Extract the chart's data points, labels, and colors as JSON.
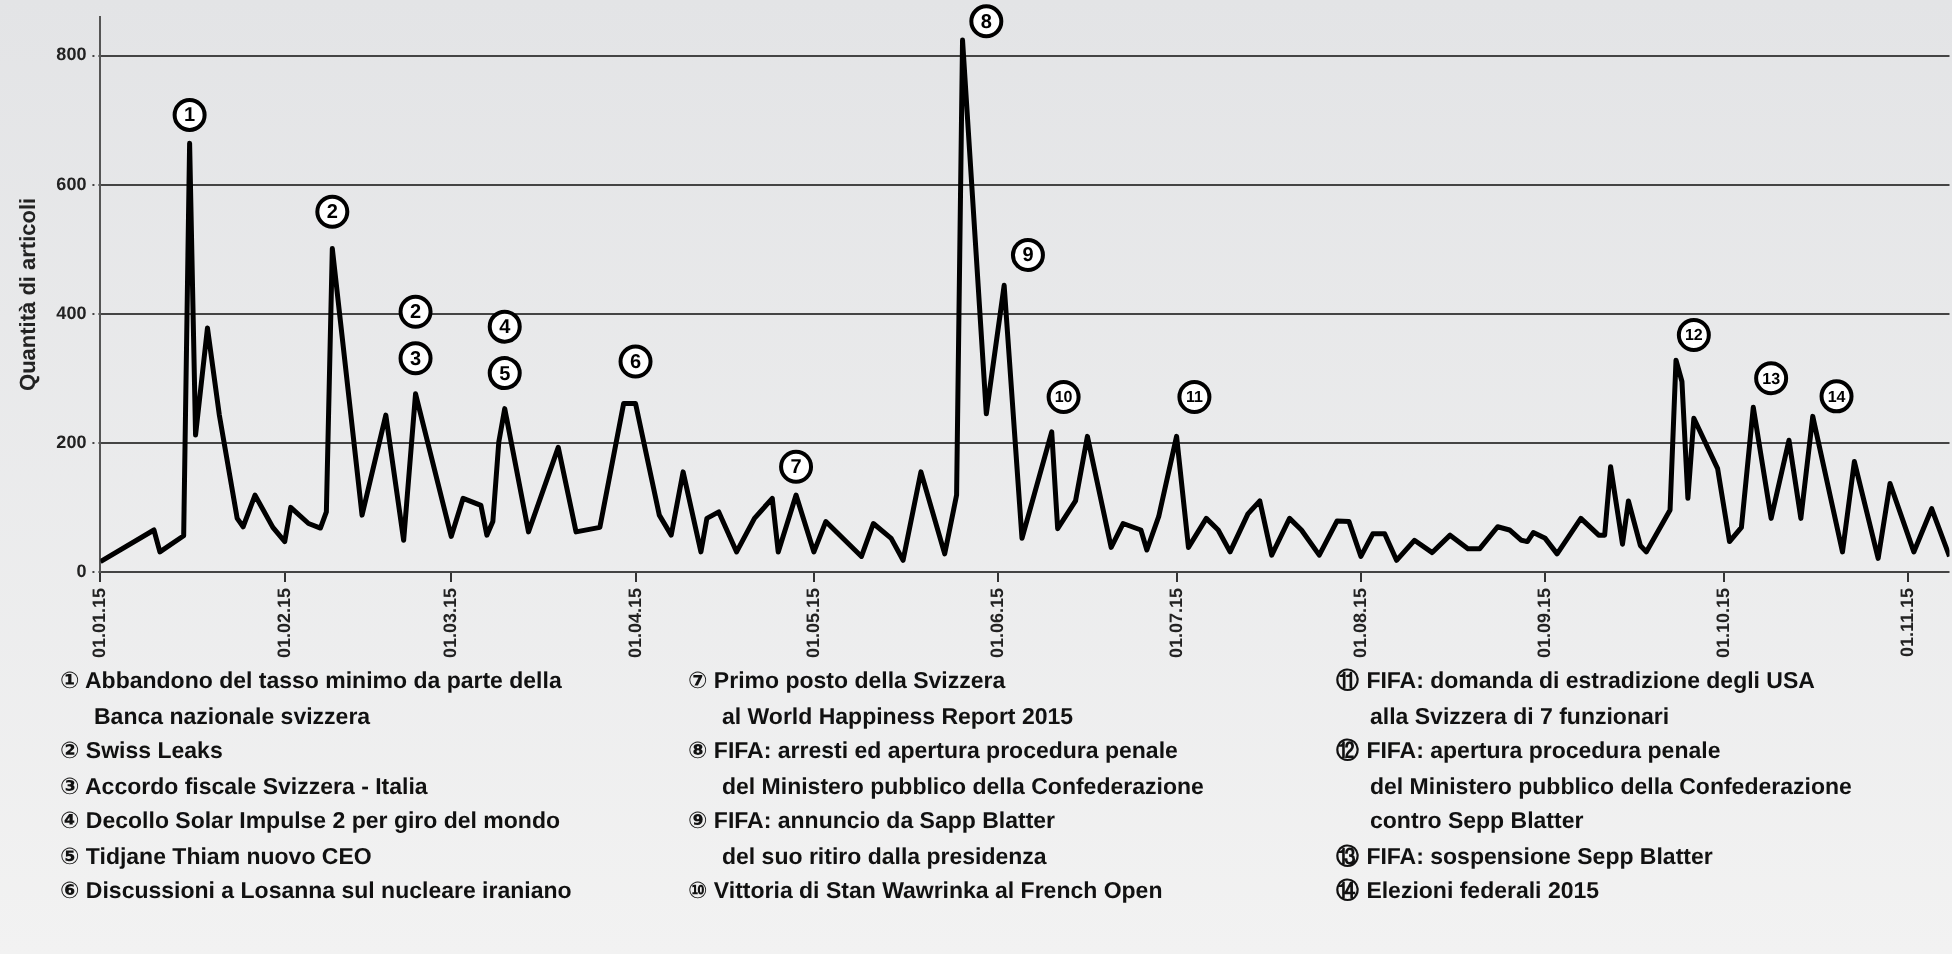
{
  "chart_data": {
    "type": "line",
    "ylabel": "Quantità di articoli",
    "x": [
      "2015-01-01",
      "2015-01-10",
      "2015-01-11",
      "2015-01-15",
      "2015-01-16",
      "2015-01-17",
      "2015-01-19",
      "2015-01-21",
      "2015-01-24",
      "2015-01-25",
      "2015-01-27",
      "2015-01-30",
      "2015-02-01",
      "2015-02-02",
      "2015-02-05",
      "2015-02-07",
      "2015-02-08",
      "2015-02-09",
      "2015-02-14",
      "2015-02-18",
      "2015-02-21",
      "2015-02-23",
      "2015-03-01",
      "2015-03-03",
      "2015-03-06",
      "2015-03-07",
      "2015-03-08",
      "2015-03-09",
      "2015-03-10",
      "2015-03-14",
      "2015-03-19",
      "2015-03-22",
      "2015-03-26",
      "2015-03-30",
      "2015-04-01",
      "2015-04-05",
      "2015-04-07",
      "2015-04-09",
      "2015-04-12",
      "2015-04-13",
      "2015-04-15",
      "2015-04-18",
      "2015-04-21",
      "2015-04-24",
      "2015-04-25",
      "2015-04-28",
      "2015-05-01",
      "2015-05-03",
      "2015-05-09",
      "2015-05-11",
      "2015-05-14",
      "2015-05-16",
      "2015-05-19",
      "2015-05-23",
      "2015-05-25",
      "2015-05-26",
      "2015-05-30",
      "2015-06-02",
      "2015-06-05",
      "2015-06-10",
      "2015-06-11",
      "2015-06-14",
      "2015-06-16",
      "2015-06-20",
      "2015-06-22",
      "2015-06-25",
      "2015-06-26",
      "2015-06-28",
      "2015-07-01",
      "2015-07-03",
      "2015-07-06",
      "2015-07-08",
      "2015-07-10",
      "2015-07-13",
      "2015-07-15",
      "2015-07-17",
      "2015-07-20",
      "2015-07-22",
      "2015-07-25",
      "2015-07-28",
      "2015-07-30",
      "2015-08-01",
      "2015-08-03",
      "2015-08-05",
      "2015-08-07",
      "2015-08-10",
      "2015-08-13",
      "2015-08-16",
      "2015-08-19",
      "2015-08-21",
      "2015-08-24",
      "2015-08-26",
      "2015-08-28",
      "2015-08-29",
      "2015-08-30",
      "2015-09-01",
      "2015-09-03",
      "2015-09-07",
      "2015-09-10",
      "2015-09-11",
      "2015-09-12",
      "2015-09-14",
      "2015-09-15",
      "2015-09-17",
      "2015-09-18",
      "2015-09-22",
      "2015-09-23",
      "2015-09-24",
      "2015-09-25",
      "2015-09-26",
      "2015-09-30",
      "2015-10-02",
      "2015-10-04",
      "2015-10-06",
      "2015-10-09",
      "2015-10-12",
      "2015-10-14",
      "2015-10-16",
      "2015-10-21",
      "2015-10-23",
      "2015-10-27",
      "2015-10-29",
      "2015-11-02",
      "2015-11-05",
      "2015-11-08"
    ],
    "series": [
      {
        "color": "#000000",
        "values": [
          16,
          65,
          31,
          56,
          664,
          212,
          378,
          243,
          83,
          70,
          119,
          69,
          47,
          100,
          75,
          68,
          93,
          501,
          88,
          243,
          49,
          276,
          55,
          114,
          103,
          57,
          78,
          201,
          253,
          62,
          193,
          62,
          69,
          261,
          261,
          88,
          57,
          155,
          31,
          83,
          93,
          31,
          83,
          114,
          31,
          119,
          31,
          78,
          24,
          75,
          52,
          18,
          155,
          28,
          119,
          824,
          245,
          444,
          52,
          217,
          67,
          110,
          210,
          38,
          75,
          65,
          34,
          86,
          210,
          38,
          83,
          65,
          31,
          90,
          110,
          26,
          83,
          65,
          26,
          79,
          78,
          24,
          59,
          59,
          18,
          49,
          30,
          57,
          36,
          36,
          70,
          65,
          49,
          47,
          61,
          52,
          28,
          83,
          57,
          57,
          163,
          43,
          110,
          41,
          31,
          96,
          328,
          295,
          114,
          238,
          160,
          47,
          69,
          255,
          83,
          204,
          83,
          241,
          31,
          171,
          21,
          137,
          31,
          98,
          24
        ]
      }
    ],
    "xlim": [
      "2015-01-01",
      "2015-11-08"
    ],
    "xticks": [
      {
        "value": "2015-01-01",
        "label": "01.01.15"
      },
      {
        "value": "2015-02-01",
        "label": "01.02.15"
      },
      {
        "value": "2015-03-01",
        "label": "01.03.15"
      },
      {
        "value": "2015-04-01",
        "label": "01.04.15"
      },
      {
        "value": "2015-05-01",
        "label": "01.05.15"
      },
      {
        "value": "2015-06-01",
        "label": "01.06.15"
      },
      {
        "value": "2015-07-01",
        "label": "01.07.15"
      },
      {
        "value": "2015-08-01",
        "label": "01.08.15"
      },
      {
        "value": "2015-09-01",
        "label": "01.09.15"
      },
      {
        "value": "2015-10-01",
        "label": "01.10.15"
      },
      {
        "value": "2015-11-01",
        "label": "01.11.15"
      }
    ],
    "ylim": [
      0,
      860
    ],
    "yticks": [
      0,
      200,
      400,
      600,
      800
    ],
    "grid": "y",
    "legend": false,
    "marker": "none",
    "line_style": "solid",
    "annotations": [
      {
        "text": "1",
        "x": "2015-01-16",
        "y": 708
      },
      {
        "text": "2",
        "x": "2015-02-09",
        "y": 558
      },
      {
        "text": "2",
        "x": "2015-02-23",
        "y": 403
      },
      {
        "text": "3",
        "x": "2015-02-23",
        "y": 331
      },
      {
        "text": "4",
        "x": "2015-03-10",
        "y": 380
      },
      {
        "text": "5",
        "x": "2015-03-10",
        "y": 308
      },
      {
        "text": "6",
        "x": "2015-04-01",
        "y": 326
      },
      {
        "text": "7",
        "x": "2015-04-28",
        "y": 163
      },
      {
        "text": "8",
        "x": "2015-05-30",
        "y": 853
      },
      {
        "text": "9",
        "x": "2015-06-06",
        "y": 491
      },
      {
        "text": "10",
        "x": "2015-06-12",
        "y": 271
      },
      {
        "text": "11",
        "x": "2015-07-04",
        "y": 271
      },
      {
        "text": "12",
        "x": "2015-09-26",
        "y": 367
      },
      {
        "text": "13",
        "x": "2015-10-09",
        "y": 300
      },
      {
        "text": "14",
        "x": "2015-10-20",
        "y": 272
      },
      "① Abbandono del tasso minimo da parte della\nBanca nazionale svizzera",
      "② Swiss Leaks",
      "③ Accordo fiscale Svizzera - Italia",
      "④ Decollo Solar Impulse 2 per giro del mondo",
      "⑤ Tidjane Thiam nuovo CEO",
      "⑥ Discussioni a Losanna sul nucleare iraniano",
      "⑦ Primo posto della Svizzera\nal World Happiness Report 2015",
      "⑧ FIFA: arresti ed apertura procedura penale\ndel Ministero pubblico della Confederazione",
      "⑨ FIFA: annuncio da Sapp Blatter\ndel suo ritiro dalla presidenza",
      "⑩ Vittoria di Stan Wawrinka al French Open",
      "⑪ FIFA: domanda di estradizione degli USA\nalla Svizzera di 7 funzionari",
      "⑫ FIFA: apertura procedura penale\ndel Ministero pubblico della Confederazione\ncontro Sepp Blatter",
      "⑬ FIFA: sospensione Sepp Blatter",
      "⑭ Elezioni federali 2015"
    ]
  }
}
